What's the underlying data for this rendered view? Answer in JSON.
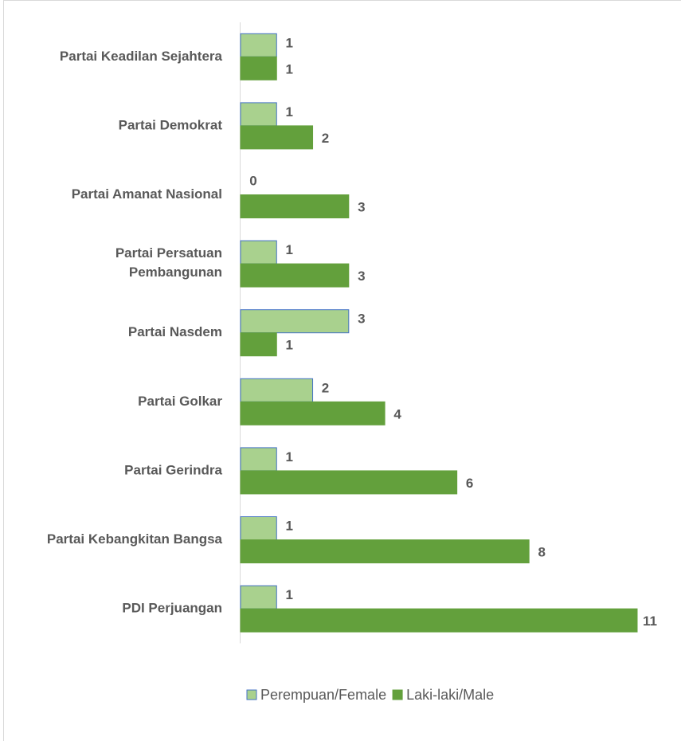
{
  "chart_data": {
    "type": "bar",
    "orientation": "horizontal",
    "categories": [
      "Partai Keadilan Sejahtera",
      "Partai Demokrat",
      "Partai Amanat Nasional",
      "Partai Persatuan\nPembangunan",
      "Partai Nasdem",
      "Partai Golkar",
      "Partai Gerindra",
      "Partai Kebangkitan Bangsa",
      "PDI Perjuangan"
    ],
    "series": [
      {
        "name": "Perempuan/Female",
        "color": "#a9d18e",
        "border": "#4472c4",
        "values": [
          1,
          1,
          0,
          1,
          3,
          2,
          1,
          1,
          1
        ]
      },
      {
        "name": "Laki-laki/Male",
        "color": "#63a03c",
        "border": "#63a03c",
        "values": [
          1,
          2,
          3,
          3,
          1,
          4,
          6,
          8,
          11
        ]
      }
    ],
    "legend": "bottom"
  }
}
